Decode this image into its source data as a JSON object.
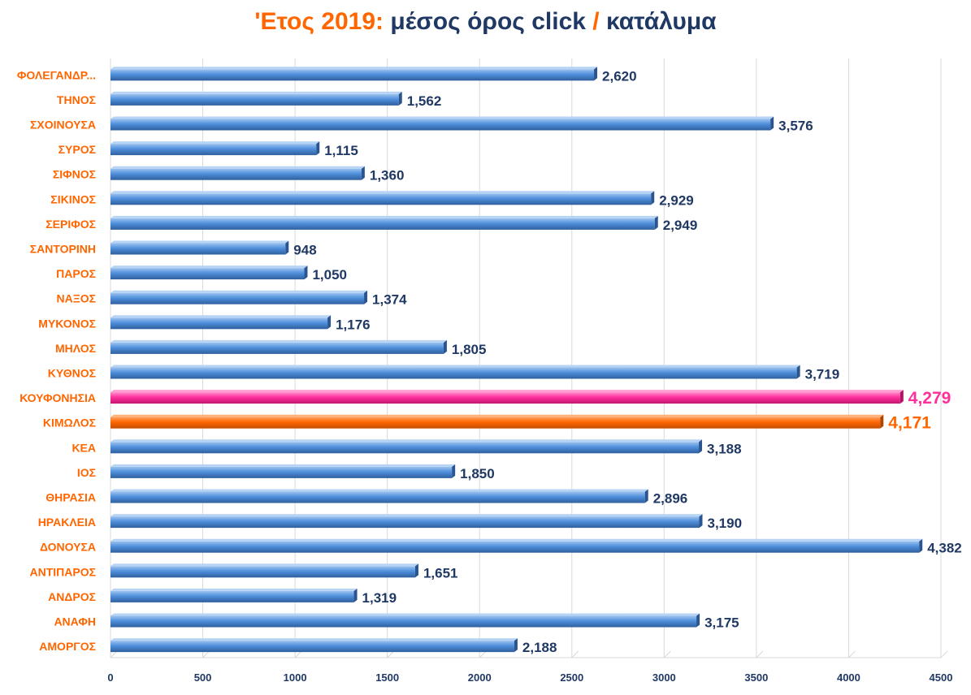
{
  "title": {
    "part1": "'Ετος 2019:",
    "part2": "μέσος όρος click",
    "part3": "/",
    "part4": "κατάλυμα"
  },
  "colors": {
    "bar": "#4f8fdb",
    "bar_top": "#9cc3ef",
    "bar_dark": "#2f5f9e",
    "highlight_pink": "#ff2f9c",
    "highlight_orange": "#ff6600",
    "label_orange": "#ff6600",
    "value_navy": "#1f3864",
    "grid": "#d9d9d9"
  },
  "chart_data": {
    "type": "bar",
    "orientation": "horizontal",
    "categories": [
      "ΦΟΛΕΓΑΝΔΡ...",
      "ΤΗΝΟΣ",
      "ΣΧΟΙΝΟΥΣΑ",
      "ΣΥΡΟΣ",
      "ΣΙΦΝΟΣ",
      "ΣΙΚΙΝΟΣ",
      "ΣΕΡΙΦΟΣ",
      "ΣΑΝΤΟΡΙΝΗ",
      "ΠΑΡΟΣ",
      "ΝΑΞΟΣ",
      "ΜΥΚΟΝΟΣ",
      "ΜΗΛΟΣ",
      "ΚΥΘΝΟΣ",
      "ΚΟΥΦΟΝΗΣΙΑ",
      "ΚΙΜΩΛΟΣ",
      "ΚΕΑ",
      "ΙΟΣ",
      "ΘΗΡΑΣΙΑ",
      "ΗΡΑΚΛΕΙΑ",
      "ΔΟΝΟΥΣΑ",
      "ΑΝΤΙΠΑΡΟΣ",
      "ΑΝΔΡΟΣ",
      "ΑΝΑΦΗ",
      "ΑΜΟΡΓΟΣ"
    ],
    "values": [
      2620,
      1562,
      3576,
      1115,
      1360,
      2929,
      2949,
      948,
      1050,
      1374,
      1176,
      1805,
      3719,
      4279,
      4171,
      3188,
      1850,
      2896,
      3190,
      4382,
      1651,
      1319,
      3175,
      2188
    ],
    "value_labels": [
      "2,620",
      "1,562",
      "3,576",
      "1,115",
      "1,360",
      "2,929",
      "2,949",
      "948",
      "1,050",
      "1,374",
      "1,176",
      "1,805",
      "3,719",
      "4,279",
      "4,171",
      "3,188",
      "1,850",
      "2,896",
      "3,190",
      "4,382",
      "1,651",
      "1,319",
      "3,175",
      "2,188"
    ],
    "highlights": {
      "ΚΟΥΦΟΝΗΣΙΑ": "pink",
      "ΚΙΜΩΛΟΣ": "orange"
    },
    "xlim": [
      0,
      4500
    ],
    "xticks": [
      0,
      500,
      1000,
      1500,
      2000,
      2500,
      3000,
      3500,
      4000,
      4500
    ],
    "xtick_labels": [
      "0",
      "500",
      "1000",
      "1500",
      "2000",
      "2500",
      "3000",
      "3500",
      "4000",
      "4500"
    ],
    "grid": "vertical",
    "legend": "none"
  }
}
